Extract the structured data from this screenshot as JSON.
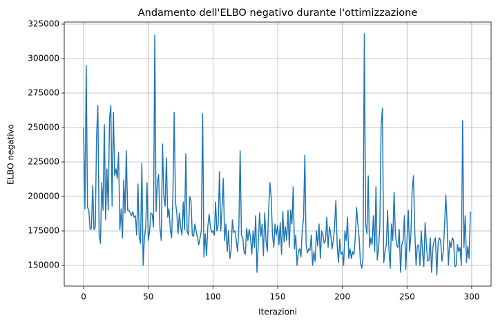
{
  "chart_data": {
    "type": "line",
    "title": "Andamento dell'ELBO negativo durante l'ottimizzazione",
    "xlabel": "Iterazioni",
    "ylabel": "ELBO negativo",
    "xlim": [
      -15,
      315
    ],
    "ylim": [
      135000,
      326500
    ],
    "xticks": [
      0,
      50,
      100,
      150,
      200,
      250,
      300
    ],
    "yticks": [
      150000,
      175000,
      200000,
      225000,
      250000,
      275000,
      300000,
      325000
    ],
    "grid": true,
    "x": [
      0,
      1,
      2,
      3,
      4,
      5,
      6,
      7,
      8,
      9,
      10,
      11,
      12,
      13,
      14,
      15,
      16,
      17,
      18,
      19,
      20,
      21,
      22,
      23,
      24,
      25,
      26,
      27,
      28,
      29,
      30,
      31,
      32,
      33,
      34,
      35,
      36,
      37,
      38,
      39,
      40,
      41,
      42,
      43,
      44,
      45,
      46,
      47,
      48,
      49,
      50,
      51,
      52,
      53,
      54,
      55,
      56,
      57,
      58,
      59,
      60,
      61,
      62,
      63,
      64,
      65,
      66,
      67,
      68,
      69,
      70,
      71,
      72,
      73,
      74,
      75,
      76,
      77,
      78,
      79,
      80,
      81,
      82,
      83,
      84,
      85,
      86,
      87,
      88,
      89,
      90,
      91,
      92,
      93,
      94,
      95,
      96,
      97,
      98,
      99,
      100,
      101,
      102,
      103,
      104,
      105,
      106,
      107,
      108,
      109,
      110,
      111,
      112,
      113,
      114,
      115,
      116,
      117,
      118,
      119,
      120,
      121,
      122,
      123,
      124,
      125,
      126,
      127,
      128,
      129,
      130,
      131,
      132,
      133,
      134,
      135,
      136,
      137,
      138,
      139,
      140,
      141,
      142,
      143,
      144,
      145,
      146,
      147,
      148,
      149,
      150,
      151,
      152,
      153,
      154,
      155,
      156,
      157,
      158,
      159,
      160,
      161,
      162,
      163,
      164,
      165,
      166,
      167,
      168,
      169,
      170,
      171,
      172,
      173,
      174,
      175,
      176,
      177,
      178,
      179,
      180,
      181,
      182,
      183,
      184,
      185,
      186,
      187,
      188,
      189,
      190,
      191,
      192,
      193,
      194,
      195,
      196,
      197,
      198,
      199,
      200,
      201,
      202,
      203,
      204,
      205,
      206,
      207,
      208,
      209,
      210,
      211,
      212,
      213,
      214,
      215,
      216,
      217,
      218,
      219,
      220,
      221,
      222,
      223,
      224,
      225,
      226,
      227,
      228,
      229,
      230,
      231,
      232,
      233,
      234,
      235,
      236,
      237,
      238,
      239,
      240,
      241,
      242,
      243,
      244,
      245,
      246,
      247,
      248,
      249,
      250,
      251,
      252,
      253,
      254,
      255,
      256,
      257,
      258,
      259,
      260,
      261,
      262,
      263,
      264,
      265,
      266,
      267,
      268,
      269,
      270,
      271,
      272,
      273,
      274,
      275,
      276,
      277,
      278,
      279,
      280,
      281,
      282,
      283,
      284,
      285,
      286,
      287,
      288,
      289,
      290,
      291,
      292,
      293,
      294,
      295,
      296,
      297,
      298,
      299
    ],
    "series": [
      {
        "color": "#1f77b4",
        "values": [
          250000,
          191000,
          295000,
          192000,
          190000,
          176000,
          177000,
          208000,
          176000,
          178000,
          244000,
          266000,
          172000,
          166000,
          210000,
          190000,
          252000,
          183000,
          220000,
          190000,
          256000,
          266000,
          193000,
          261000,
          215000,
          220000,
          213000,
          232000,
          176000,
          191000,
          170000,
          212000,
          188000,
          233000,
          190000,
          190000,
          188000,
          186000,
          189000,
          185000,
          186000,
          172000,
          209000,
          170000,
          166000,
          224000,
          150000,
          170000,
          178000,
          210000,
          168000,
          175000,
          188000,
          187000,
          178000,
          317000,
          189000,
          210000,
          216000,
          177000,
          168000,
          238000,
          200000,
          193000,
          228000,
          185000,
          191000,
          176000,
          170000,
          200000,
          261000,
          196000,
          188000,
          173000,
          188000,
          178000,
          172000,
          196000,
          176000,
          231000,
          175000,
          172000,
          200000,
          197000,
          172000,
          171000,
          180000,
          175000,
          170000,
          165000,
          170000,
          175000,
          260000,
          156000,
          173000,
          157000,
          178000,
          187000,
          178000,
          174000,
          175000,
          172000,
          196000,
          175000,
          179000,
          218000,
          175000,
          192000,
          213000,
          168000,
          180000,
          160000,
          175000,
          155000,
          161000,
          183000,
          174000,
          175000,
          168000,
          160000,
          178000,
          233000,
          172000,
          170000,
          160000,
          158000,
          177000,
          168000,
          176000,
          170000,
          158000,
          175000,
          163000,
          186000,
          145000,
          165000,
          188000,
          171000,
          180000,
          157000,
          188000,
          168000,
          160000,
          190000,
          210000,
          199000,
          172000,
          163000,
          180000,
          172000,
          179000,
          165000,
          181000,
          158000,
          189000,
          167000,
          178000,
          168000,
          190000,
          163000,
          190000,
          180000,
          207000,
          162000,
          172000,
          150000,
          160000,
          162000,
          156000,
          175000,
          184000,
          230000,
          165000,
          159000,
          162000,
          161000,
          172000,
          150000,
          160000,
          153000,
          175000,
          164000,
          180000,
          155000,
          175000,
          172000,
          166000,
          168000,
          185000,
          163000,
          178000,
          173000,
          162000,
          168000,
          178000,
          197000,
          165000,
          152000,
          169000,
          158000,
          160000,
          150000,
          175000,
          168000,
          185000,
          155000,
          162000,
          155000,
          160000,
          158000,
          170000,
          192000,
          180000,
          170000,
          152000,
          148000,
          155000,
          318000,
          180000,
          173000,
          215000,
          163000,
          170000,
          165000,
          186000,
          160000,
          207000,
          154000,
          163000,
          178000,
          252000,
          264000,
          152000,
          160000,
          165000,
          190000,
          162000,
          148000,
          180000,
          168000,
          203000,
          173000,
          165000,
          163000,
          176000,
          145000,
          165000,
          168000,
          186000,
          147000,
          168000,
          190000,
          160000,
          172000,
          205000,
          215000,
          175000,
          150000,
          164000,
          165000,
          150000,
          175000,
          160000,
          149000,
          181000,
          165000,
          153000,
          154000,
          170000,
          145000,
          163000,
          168000,
          170000,
          143000,
          165000,
          170000,
          168000,
          153000,
          160000,
          178000,
          201000,
          180000,
          150000,
          168000,
          163000,
          170000,
          168000,
          149000,
          150000,
          165000,
          160000,
          163000,
          150000,
          255000,
          163000,
          186000,
          152000,
          164000,
          155000,
          189000
        ]
      }
    ]
  }
}
